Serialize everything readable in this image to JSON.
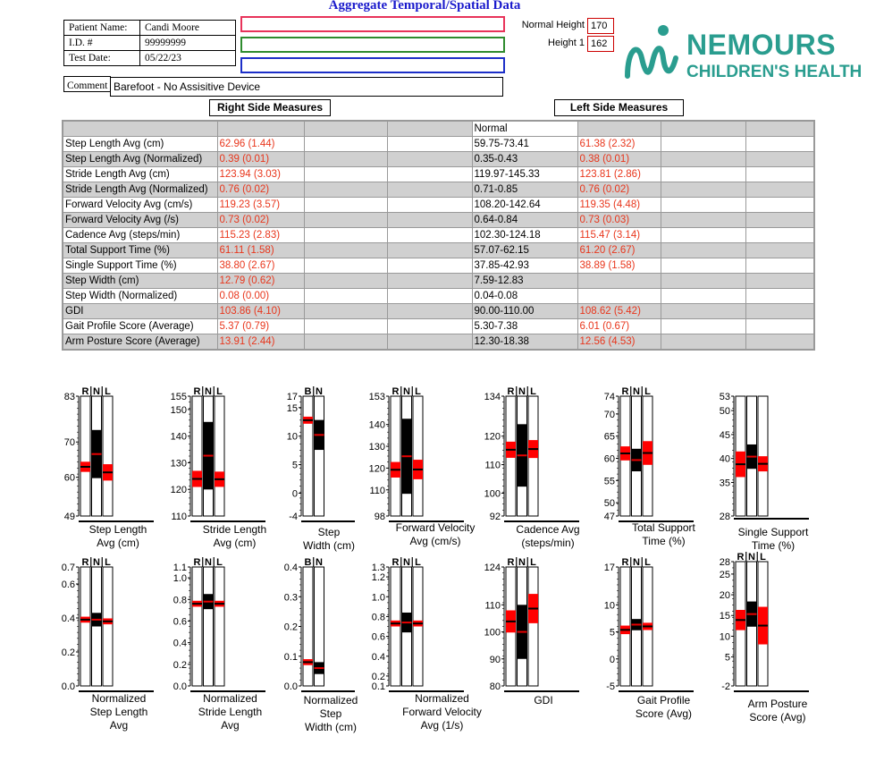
{
  "title": "Aggregate Temporal/Spatial Data",
  "patient": {
    "name_label": "Patient Name:",
    "name": "Candi Moore",
    "id_label": "I.D. #",
    "id": "99999999",
    "date_label": "Test Date:",
    "date": "05/22/23"
  },
  "legend_colors": [
    "#e8335a",
    "#2e8b2e",
    "#1c2fc8"
  ],
  "heights": {
    "normal_label": "Normal Height",
    "normal": "170",
    "height1_label": "Height 1",
    "height1": "162"
  },
  "logo": {
    "line1": "NEMOURS",
    "line2": "CHILDREN'S HEALTH",
    "color": "#2a9d8f"
  },
  "comment": {
    "label": "Comment",
    "value": "Barefoot - No Assisitive Device"
  },
  "right_side_label": "Right Side Measures",
  "left_side_label": "Left Side Measures",
  "table": {
    "normal_header": "Normal",
    "rows": [
      {
        "label": "Step Length  Avg (cm)",
        "right": "62.96 (1.44)",
        "normal": "59.75-73.41",
        "left": "61.38 (2.32)"
      },
      {
        "label": "Step Length  Avg (Normalized)",
        "right": "0.39 (0.01)",
        "normal": "0.35-0.43",
        "left": "0.38 (0.01)"
      },
      {
        "label": "Stride Length Avg (cm)",
        "right": "123.94 (3.03)",
        "normal": "119.97-145.33",
        "left": "123.81 (2.86)"
      },
      {
        "label": "Stride Length Avg (Normalized)",
        "right": "0.76 (0.02)",
        "normal": "0.71-0.85",
        "left": "0.76 (0.02)"
      },
      {
        "label": "Forward Velocity Avg (cm/s)",
        "right": "119.23 (3.57)",
        "normal": "108.20-142.64",
        "left": "119.35 (4.48)"
      },
      {
        "label": "Forward Velocity Avg (/s)",
        "right": "0.73 (0.02)",
        "normal": "0.64-0.84",
        "left": "0.73 (0.03)"
      },
      {
        "label": "Cadence Avg (steps/min)",
        "right": "115.23 (2.83)",
        "normal": "102.30-124.18",
        "left": "115.47 (3.14)"
      },
      {
        "label": "Total Support Time (%)",
        "right": "61.11 (1.58)",
        "normal": "57.07-62.15",
        "left": "61.20 (2.67)"
      },
      {
        "label": "Single Support Time (%)",
        "right": "38.80 (2.67)",
        "normal": "37.85-42.93",
        "left": "38.89 (1.58)"
      },
      {
        "label": "Step Width (cm)",
        "right": "12.79 (0.62)",
        "normal": "7.59-12.83",
        "left": ""
      },
      {
        "label": "Step Width (Normalized)",
        "right": "0.08 (0.00)",
        "normal": "0.04-0.08",
        "left": ""
      },
      {
        "label": "GDI",
        "right": "103.86 (4.10)",
        "normal": "90.00-110.00",
        "left": "108.62 (5.42)"
      },
      {
        "label": "Gait Profile Score (Average)",
        "right": "5.37 (0.79)",
        "normal": "5.30-7.38",
        "left": "6.01 (0.67)"
      },
      {
        "label": " Arm Posture Score (Average)",
        "right": "13.91 (2.44)",
        "normal": "12.30-18.38",
        "left": "12.56 (4.53)"
      }
    ]
  },
  "chart_data": [
    {
      "type": "bar",
      "title": "Step Length Avg (cm)",
      "caption": [
        "Step Length",
        "Avg (cm)"
      ],
      "columns": "RNL",
      "ylim": [
        49,
        83
      ],
      "ticks": [
        {
          "v": 83,
          "t": "83"
        },
        {
          "v": 70,
          "t": "70"
        },
        {
          "v": 60,
          "t": "60"
        },
        {
          "v": 49,
          "t": "49"
        }
      ],
      "right": {
        "mean": 62.96,
        "sd": 1.44
      },
      "normal": [
        59.75,
        73.41
      ],
      "left": {
        "mean": 61.38,
        "sd": 2.32
      }
    },
    {
      "type": "bar",
      "title": "Stride Length Avg (cm)",
      "caption": [
        "Stride Length",
        "Avg (cm)"
      ],
      "columns": "RNL",
      "ylim": [
        110,
        155
      ],
      "ticks": [
        {
          "v": 155,
          "t": "155"
        },
        {
          "v": 150,
          "t": "150"
        },
        {
          "v": 140,
          "t": "140"
        },
        {
          "v": 130,
          "t": "130"
        },
        {
          "v": 120,
          "t": "120"
        },
        {
          "v": 110,
          "t": "110"
        }
      ],
      "right": {
        "mean": 123.94,
        "sd": 3.03
      },
      "normal": [
        119.97,
        145.33
      ],
      "left": {
        "mean": 123.81,
        "sd": 2.86
      }
    },
    {
      "type": "bar",
      "title": "Step Width (cm)",
      "caption": [
        "Step",
        "Width (cm)"
      ],
      "columns": "BN",
      "ylim": [
        -4,
        17
      ],
      "ticks": [
        {
          "v": 17,
          "t": "17"
        },
        {
          "v": 15,
          "t": "15"
        },
        {
          "v": 10,
          "t": "10"
        },
        {
          "v": 5,
          "t": "5"
        },
        {
          "v": 0,
          "t": "0"
        },
        {
          "v": -4,
          "t": "-4"
        }
      ],
      "right": {
        "mean": 12.79,
        "sd": 0.62
      },
      "normal": [
        7.59,
        12.83
      ],
      "left": null
    },
    {
      "type": "bar",
      "title": "Forward Velocity Avg (cm/s)",
      "caption": [
        "Forward Velocity",
        "Avg (cm/s)"
      ],
      "columns": "RNL",
      "ylim": [
        98,
        153
      ],
      "ticks": [
        {
          "v": 153,
          "t": "153"
        },
        {
          "v": 140,
          "t": "140"
        },
        {
          "v": 130,
          "t": "130"
        },
        {
          "v": 120,
          "t": "120"
        },
        {
          "v": 110,
          "t": "110"
        },
        {
          "v": 98,
          "t": "98"
        }
      ],
      "right": {
        "mean": 119.23,
        "sd": 3.57
      },
      "normal": [
        108.2,
        142.64
      ],
      "left": {
        "mean": 119.35,
        "sd": 4.48
      }
    },
    {
      "type": "bar",
      "title": "Cadence Avg (steps/min)",
      "caption": [
        "Cadence Avg",
        "(steps/min)"
      ],
      "columns": "RNL",
      "ylim": [
        92,
        134
      ],
      "ticks": [
        {
          "v": 134,
          "t": "134"
        },
        {
          "v": 120,
          "t": "120"
        },
        {
          "v": 110,
          "t": "110"
        },
        {
          "v": 100,
          "t": "100"
        },
        {
          "v": 92,
          "t": "92"
        }
      ],
      "right": {
        "mean": 115.23,
        "sd": 2.83
      },
      "normal": [
        102.3,
        124.18
      ],
      "left": {
        "mean": 115.47,
        "sd": 3.14
      }
    },
    {
      "type": "bar",
      "title": "Total Support Time (%)",
      "caption": [
        "Total Support",
        "Time (%)"
      ],
      "columns": "RNL",
      "ylim": [
        47,
        74
      ],
      "ticks": [
        {
          "v": 74,
          "t": "74"
        },
        {
          "v": 70,
          "t": "70"
        },
        {
          "v": 65,
          "t": "65"
        },
        {
          "v": 60,
          "t": "60"
        },
        {
          "v": 55,
          "t": "55"
        },
        {
          "v": 50,
          "t": "50"
        },
        {
          "v": 47,
          "t": "47"
        }
      ],
      "right": {
        "mean": 61.11,
        "sd": 1.58
      },
      "normal": [
        57.07,
        62.15
      ],
      "left": {
        "mean": 61.2,
        "sd": 2.67
      }
    },
    {
      "type": "bar",
      "title": "Single Support Time (%)",
      "caption": [
        "Single Support",
        "Time (%)"
      ],
      "columns": "none",
      "ylim": [
        28,
        53
      ],
      "ticks": [
        {
          "v": 53,
          "t": "53"
        },
        {
          "v": 50,
          "t": "50"
        },
        {
          "v": 45,
          "t": "45"
        },
        {
          "v": 40,
          "t": "40"
        },
        {
          "v": 35,
          "t": "35"
        },
        {
          "v": 28,
          "t": "28"
        }
      ],
      "right": {
        "mean": 38.8,
        "sd": 2.67
      },
      "normal": [
        37.85,
        42.93
      ],
      "left": {
        "mean": 38.89,
        "sd": 1.58
      }
    },
    {
      "type": "bar",
      "title": "Normalized Step Length Avg",
      "caption": [
        "Normalized",
        "Step Length",
        "Avg"
      ],
      "columns": "RNL",
      "ylim": [
        0,
        0.7
      ],
      "ticks": [
        {
          "v": 0.7,
          "t": "0.7"
        },
        {
          "v": 0.6,
          "t": "0.6"
        },
        {
          "v": 0.4,
          "t": "0.4"
        },
        {
          "v": 0.2,
          "t": "0.2"
        },
        {
          "v": 0,
          "t": "0.0"
        }
      ],
      "right": {
        "mean": 0.39,
        "sd": 0.01
      },
      "normal": [
        0.35,
        0.43
      ],
      "left": {
        "mean": 0.38,
        "sd": 0.01
      }
    },
    {
      "type": "bar",
      "title": "Normalized Stride Length Avg",
      "caption": [
        "Normalized",
        "Stride Length",
        "Avg"
      ],
      "columns": "RNL",
      "ylim": [
        0,
        1.1
      ],
      "ticks": [
        {
          "v": 1.1,
          "t": "1.1"
        },
        {
          "v": 1.0,
          "t": "1.0"
        },
        {
          "v": 0.8,
          "t": "0.8"
        },
        {
          "v": 0.6,
          "t": "0.6"
        },
        {
          "v": 0.4,
          "t": "0.4"
        },
        {
          "v": 0.2,
          "t": "0.2"
        },
        {
          "v": 0,
          "t": "0.0"
        }
      ],
      "right": {
        "mean": 0.76,
        "sd": 0.02
      },
      "normal": [
        0.71,
        0.85
      ],
      "left": {
        "mean": 0.76,
        "sd": 0.02
      }
    },
    {
      "type": "bar",
      "title": "Normalized Step Width (cm)",
      "caption": [
        "Normalized",
        "Step",
        "Width (cm)"
      ],
      "columns": "BN",
      "ylim": [
        0,
        0.4
      ],
      "ticks": [
        {
          "v": 0.4,
          "t": "0.4"
        },
        {
          "v": 0.3,
          "t": "0.3"
        },
        {
          "v": 0.2,
          "t": "0.2"
        },
        {
          "v": 0.1,
          "t": "0.1"
        },
        {
          "v": 0,
          "t": "0.0"
        }
      ],
      "right": {
        "mean": 0.08,
        "sd": 0.004
      },
      "normal": [
        0.04,
        0.08
      ],
      "left": null
    },
    {
      "type": "bar",
      "title": "Normalized Forward Velocity Avg (1/s)",
      "caption": [
        "Normalized",
        "Forward Velocity",
        "Avg (1/s)"
      ],
      "columns": "RNL",
      "ylim": [
        0.1,
        1.3
      ],
      "ticks": [
        {
          "v": 1.3,
          "t": "1.3"
        },
        {
          "v": 1.2,
          "t": "1.2"
        },
        {
          "v": 1.0,
          "t": "1.0"
        },
        {
          "v": 0.8,
          "t": "0.8"
        },
        {
          "v": 0.6,
          "t": "0.6"
        },
        {
          "v": 0.4,
          "t": "0.4"
        },
        {
          "v": 0.2,
          "t": "0.2"
        },
        {
          "v": 0.1,
          "t": "0.1"
        }
      ],
      "right": {
        "mean": 0.73,
        "sd": 0.02
      },
      "normal": [
        0.64,
        0.84
      ],
      "left": {
        "mean": 0.73,
        "sd": 0.03
      }
    },
    {
      "type": "bar",
      "title": "GDI",
      "caption": [
        "GDI"
      ],
      "columns": "RNL",
      "ylim": [
        80,
        124
      ],
      "ticks": [
        {
          "v": 124,
          "t": "124"
        },
        {
          "v": 110,
          "t": "110"
        },
        {
          "v": 100,
          "t": "100"
        },
        {
          "v": 90,
          "t": "90"
        },
        {
          "v": 80,
          "t": "80"
        }
      ],
      "right": {
        "mean": 103.86,
        "sd": 4.1
      },
      "normal": [
        90,
        110
      ],
      "left": {
        "mean": 108.62,
        "sd": 5.42
      }
    },
    {
      "type": "bar",
      "title": "Gait Profile Score (Avg)",
      "caption": [
        "Gait Profile",
        "Score (Avg)"
      ],
      "columns": "RNL",
      "ylim": [
        -5,
        17
      ],
      "ticks": [
        {
          "v": 17,
          "t": "17"
        },
        {
          "v": 10,
          "t": "10"
        },
        {
          "v": 5,
          "t": "5"
        },
        {
          "v": 0,
          "t": "0"
        },
        {
          "v": -5,
          "t": "-5"
        }
      ],
      "right": {
        "mean": 5.37,
        "sd": 0.79
      },
      "normal": [
        5.3,
        7.38
      ],
      "left": {
        "mean": 6.01,
        "sd": 0.67
      }
    },
    {
      "type": "bar",
      "title": "Arm Posture Score (Avg)",
      "caption": [
        "Arm Posture",
        "Score (Avg)"
      ],
      "columns": "RNL",
      "ylim": [
        -2,
        28
      ],
      "ticks": [
        {
          "v": 28,
          "t": "28"
        },
        {
          "v": 25,
          "t": "25"
        },
        {
          "v": 20,
          "t": "20"
        },
        {
          "v": 15,
          "t": "15"
        },
        {
          "v": 10,
          "t": "10"
        },
        {
          "v": 5,
          "t": "5"
        },
        {
          "v": -2,
          "t": "-2"
        }
      ],
      "right": {
        "mean": 13.91,
        "sd": 2.44
      },
      "normal": [
        12.3,
        18.38
      ],
      "left": {
        "mean": 12.56,
        "sd": 4.53
      }
    }
  ]
}
